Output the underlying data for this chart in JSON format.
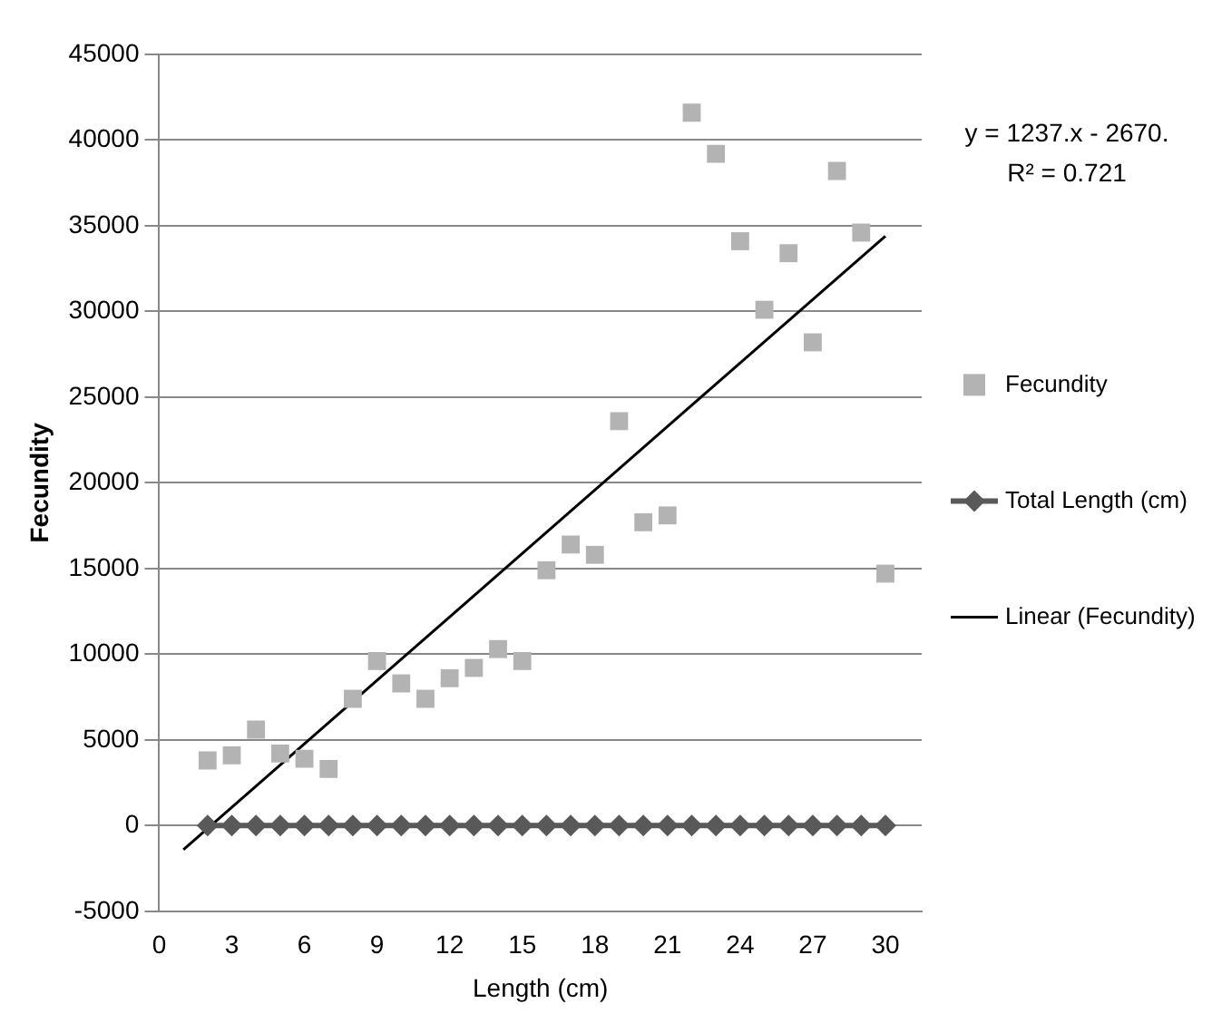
{
  "chart_data": {
    "type": "scatter",
    "xlabel": "Length (cm)",
    "ylabel": "Fecundity",
    "x": [
      2,
      3,
      4,
      5,
      6,
      7,
      8,
      9,
      10,
      11,
      12,
      13,
      14,
      15,
      16,
      17,
      18,
      19,
      20,
      21,
      22,
      23,
      24,
      25,
      26,
      27,
      28,
      29,
      30
    ],
    "series": [
      {
        "name": "Fecundity",
        "type": "scatter",
        "marker": "square",
        "color": "#b3b3b3",
        "values": [
          3800,
          4100,
          5600,
          4200,
          3900,
          3300,
          7400,
          9600,
          8300,
          7400,
          8600,
          9200,
          10300,
          9600,
          14900,
          16400,
          15800,
          23600,
          17700,
          18100,
          41600,
          39200,
          34100,
          30100,
          33400,
          28200,
          38200,
          34600,
          14700
        ]
      },
      {
        "name": "Total Length (cm)",
        "type": "line",
        "marker": "diamond",
        "color": "#595959",
        "values": [
          0,
          0,
          0,
          0,
          0,
          0,
          0,
          0,
          0,
          0,
          0,
          0,
          0,
          0,
          0,
          0,
          0,
          0,
          0,
          0,
          0,
          0,
          0,
          0,
          0,
          0,
          0,
          0,
          0
        ]
      },
      {
        "name": "Linear (Fecundity)",
        "type": "line",
        "marker": "none",
        "color": "#000000",
        "x": [
          1,
          30
        ],
        "values": [
          -1400,
          34400
        ]
      }
    ],
    "xlim": [
      0,
      31.5
    ],
    "xticks": [
      0,
      3,
      6,
      9,
      12,
      15,
      18,
      21,
      24,
      27,
      30
    ],
    "ylim": [
      -5000,
      45000
    ],
    "yticks": [
      -5000,
      0,
      5000,
      10000,
      15000,
      20000,
      25000,
      30000,
      35000,
      40000,
      45000
    ],
    "grid": "y",
    "legend": "right",
    "annotations": [
      "y = 1237.x - 2670.",
      "R² = 0.721"
    ]
  }
}
